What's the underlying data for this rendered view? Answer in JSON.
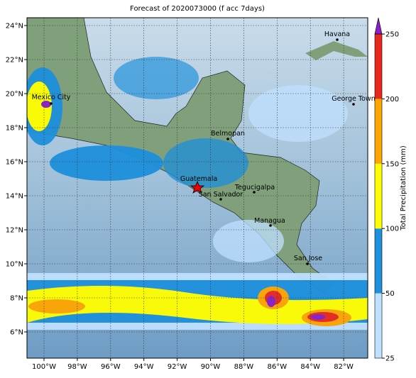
{
  "title": "Forecast of 2020073000 (f acc 7days)",
  "lon_labels": [
    "100°W",
    "98°W",
    "96°W",
    "94°W",
    "92°W",
    "90°W",
    "88°W",
    "86°W",
    "84°W",
    "82°W"
  ],
  "lat_labels": [
    "6°N",
    "8°N",
    "10°N",
    "12°N",
    "14°N",
    "16°N",
    "18°N",
    "20°N",
    "22°N",
    "24°N"
  ],
  "cities": [
    "Havana",
    "Mexico City",
    "George Town",
    "Belmopan",
    "Guatemala",
    "San Salvador",
    "Tegucigalpa",
    "Managua",
    "San Jose"
  ],
  "colorbar": {
    "label": "Total Precipitation (mm)",
    "ticks": [
      25,
      50,
      100,
      150,
      200,
      250
    ],
    "colors": [
      "#bfe0ff",
      "#1e90dc",
      "#ffff00",
      "#ffa500",
      "#e8281e"
    ],
    "over_color": "#8a1ec8"
  }
}
